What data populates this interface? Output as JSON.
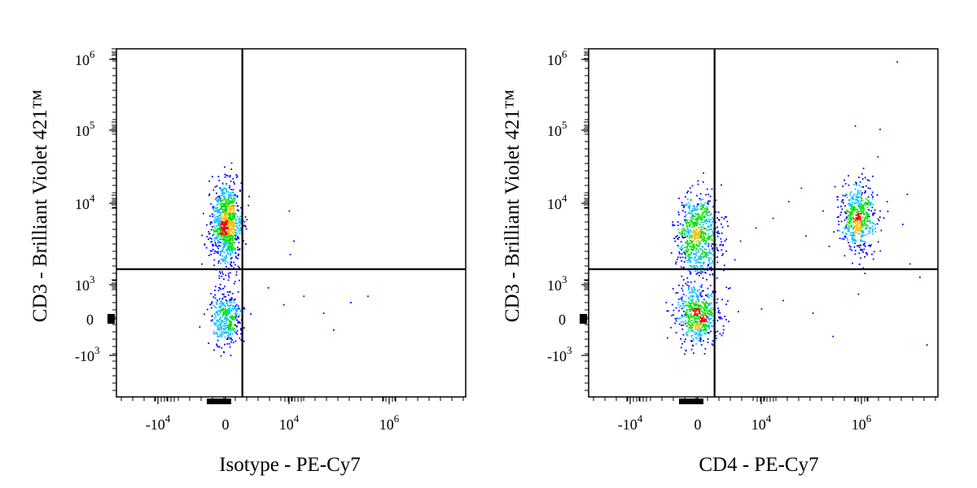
{
  "chart_data": [
    {
      "type": "scatter",
      "xlabel": "Isotype - PE-Cy7",
      "ylabel": "CD3 - Brilliant Violet 421™",
      "x_ticks": [
        {
          "base": "-10",
          "exp": "4"
        },
        {
          "base": "0",
          "exp": ""
        },
        {
          "base": "10",
          "exp": "4"
        },
        {
          "base": "10",
          "exp": "6"
        }
      ],
      "y_ticks": [
        {
          "base": "10",
          "exp": "6"
        },
        {
          "base": "10",
          "exp": "5"
        },
        {
          "base": "10",
          "exp": "4"
        },
        {
          "base": "10",
          "exp": "3"
        },
        {
          "base": "0",
          "exp": ""
        },
        {
          "base": "-10",
          "exp": "3"
        }
      ],
      "x_scale": "biexponential",
      "y_scale": "biexponential",
      "quadrant_gate": {
        "x": 1000,
        "y": 2500
      },
      "populations": [
        {
          "x": 0,
          "y": 10000,
          "sx": 450,
          "sy_log": 0.28,
          "n": 900
        },
        {
          "x": 0,
          "y": 100,
          "sx": 450,
          "sy": 700,
          "n": 380
        }
      ],
      "sparse_events": [
        [
          5000,
          15000
        ],
        [
          6000,
          6000
        ],
        [
          5200,
          4000
        ],
        [
          2500,
          1500
        ],
        [
          4000,
          700
        ],
        [
          9000,
          1100
        ],
        [
          20000,
          300
        ],
        [
          60000,
          800
        ],
        [
          120000,
          1100
        ],
        [
          30000,
          -500
        ]
      ]
    },
    {
      "type": "scatter",
      "xlabel": "CD4 - PE-Cy7",
      "ylabel": "CD3 - Brilliant Violet 421™",
      "x_ticks": [
        {
          "base": "-10",
          "exp": "4"
        },
        {
          "base": "0",
          "exp": ""
        },
        {
          "base": "10",
          "exp": "4"
        },
        {
          "base": "10",
          "exp": "6"
        }
      ],
      "y_ticks": [
        {
          "base": "10",
          "exp": "6"
        },
        {
          "base": "10",
          "exp": "5"
        },
        {
          "base": "10",
          "exp": "4"
        },
        {
          "base": "10",
          "exp": "3"
        },
        {
          "base": "0",
          "exp": ""
        },
        {
          "base": "-10",
          "exp": "3"
        }
      ],
      "x_scale": "biexponential",
      "y_scale": "biexponential",
      "quadrant_gate": {
        "x": 1000,
        "y": 2500
      },
      "populations": [
        {
          "x": 0,
          "y": 7000,
          "sx": 650,
          "sy_log": 0.28,
          "n": 700
        },
        {
          "x": 0,
          "y": 200,
          "sx": 650,
          "sy": 700,
          "n": 560
        },
        {
          "x": 250000,
          "y": 12000,
          "sx_log": 0.16,
          "sy_log": 0.25,
          "n": 520
        }
      ],
      "sparse_events": [
        [
          1200000,
          1400000
        ],
        [
          220000,
          200000
        ],
        [
          600000,
          180000
        ],
        [
          4000,
          9000
        ],
        [
          8000,
          12000
        ],
        [
          15000,
          20000
        ],
        [
          30000,
          7000
        ],
        [
          60000,
          15000
        ],
        [
          1500000,
          10000
        ],
        [
          2000000,
          3000
        ],
        [
          3000000,
          2000
        ],
        [
          5000,
          500
        ],
        [
          12000,
          900
        ],
        [
          40000,
          300
        ],
        [
          90000,
          -800
        ],
        [
          250000,
          1200
        ],
        [
          4000000,
          -1200
        ],
        [
          2500,
          6000
        ],
        [
          25000,
          30000
        ],
        [
          500000,
          8000
        ],
        [
          800000,
          20000
        ],
        [
          1800000,
          25000
        ]
      ]
    }
  ],
  "colors": {
    "density_low": "#0000ff",
    "density_mid": "#00c0ff",
    "density_mid2": "#00e000",
    "density_high": "#ffc000",
    "density_max": "#ff0000"
  }
}
